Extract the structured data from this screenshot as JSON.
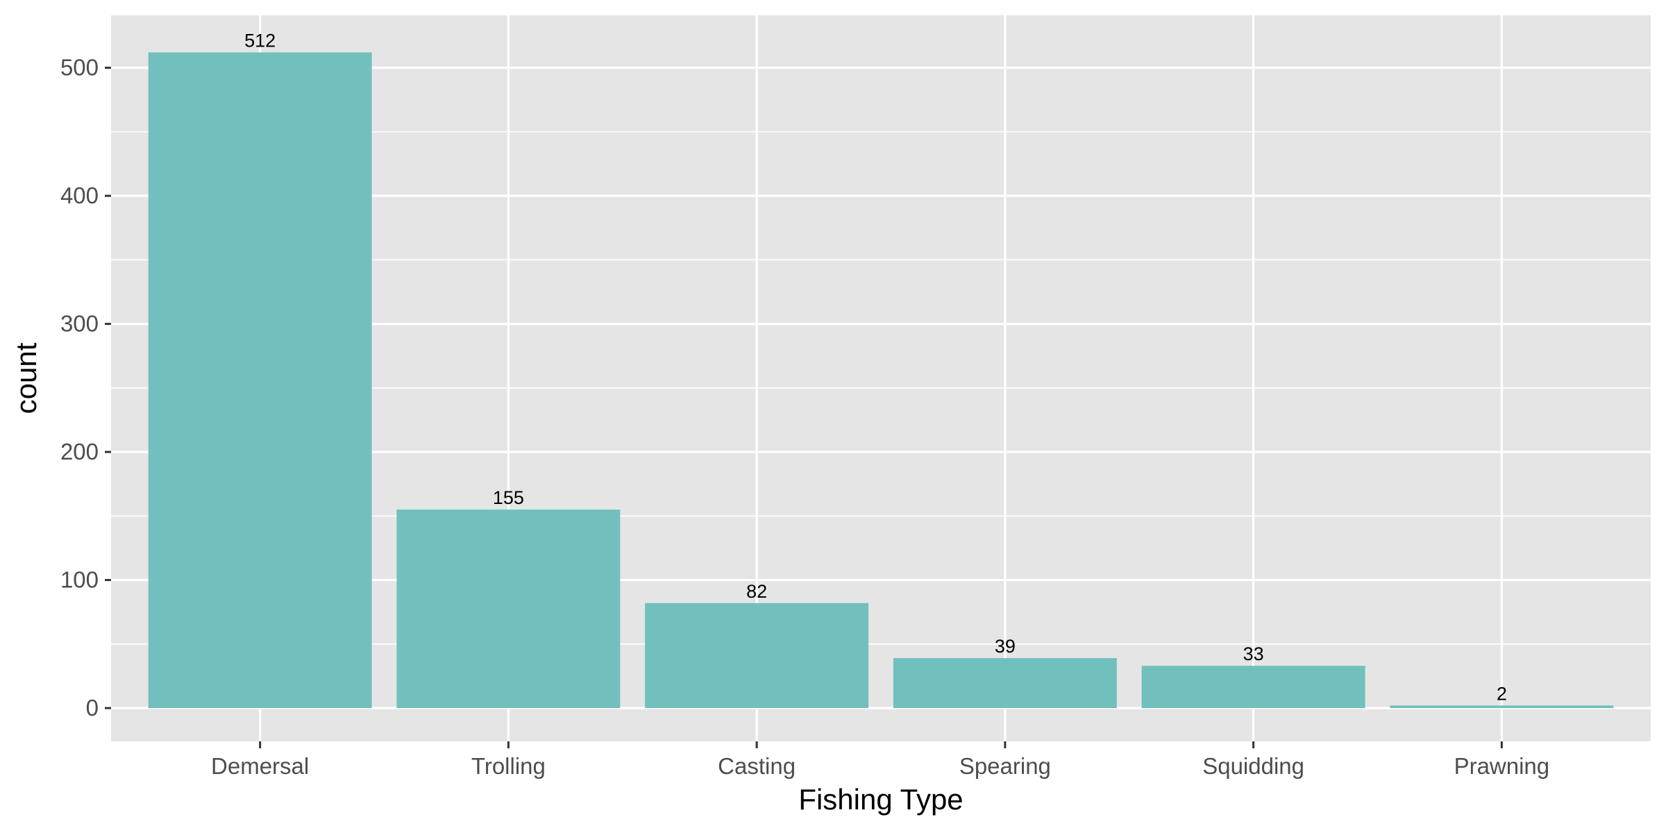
{
  "chart_data": {
    "type": "bar",
    "title": "",
    "xlabel": "Fishing Type",
    "ylabel": "count",
    "categories": [
      "Demersal",
      "Trolling",
      "Casting",
      "Spearing",
      "Squidding",
      "Prawning"
    ],
    "values": [
      512,
      155,
      82,
      39,
      33,
      2
    ],
    "data_labels": [
      "512",
      "155",
      "82",
      "39",
      "33",
      "2"
    ],
    "y_ticks": [
      0,
      100,
      200,
      300,
      400,
      500
    ],
    "ylim": [
      -26,
      541
    ],
    "grid": true,
    "legend": "none",
    "colors": {
      "bar": "#71C0BD",
      "panel": "#E5E5E5",
      "grid": "#FFFFFF",
      "tick_text": "#4D4D4D",
      "tick_mark": "#333333"
    }
  }
}
